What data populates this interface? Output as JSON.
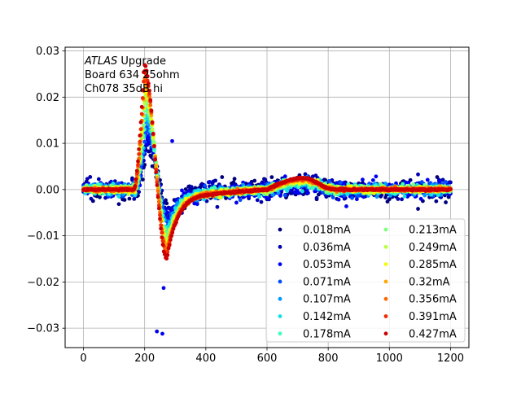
{
  "chart_data": {
    "type": "scatter",
    "annotation": {
      "prefix_italic": "ATLAS",
      "prefix_rest": " Upgrade",
      "line2": " Board 634 25ohm",
      "line3": " Ch078 35dB hi"
    },
    "xlim": [
      -60,
      1260
    ],
    "ylim": [
      -0.0342,
      0.0308
    ],
    "xticks": [
      0,
      200,
      400,
      600,
      800,
      1000,
      1200
    ],
    "xtick_labels": [
      "0",
      "200",
      "400",
      "600",
      "800",
      "1000",
      "1200"
    ],
    "yticks": [
      -0.03,
      -0.02,
      -0.01,
      0.0,
      0.01,
      0.02,
      0.03
    ],
    "ytick_labels": [
      "−0.03",
      "−0.02",
      "−0.01",
      "0.00",
      "0.01",
      "0.02",
      "0.03"
    ],
    "grid": true,
    "legend": {
      "location": "lower right",
      "columns": 2
    },
    "x_range": [
      0,
      1200
    ],
    "x_step": 3.125,
    "pulse_shape": {
      "baseline": 0.0,
      "rise_start": 165,
      "peak": {
        "x": 198,
        "y": 0.027
      },
      "trough": {
        "x": 272,
        "y": -0.015
      },
      "recovery_end": {
        "x": 420,
        "y": -0.001
      },
      "bump": {
        "x": 720,
        "y": 0.0025
      },
      "bump_end": {
        "x": 820,
        "y": 0.0
      }
    },
    "outliers": [
      {
        "x": 240,
        "y": -0.0307
      },
      {
        "x": 258,
        "y": -0.0312
      },
      {
        "x": 290,
        "y": 0.0105
      },
      {
        "x": 262,
        "y": -0.0213
      }
    ],
    "series": [
      {
        "name": "0.018mA",
        "color": "#00007f",
        "noise": 0.0012
      },
      {
        "name": "0.036mA",
        "color": "#0000b2",
        "noise": 0.001
      },
      {
        "name": "0.053mA",
        "color": "#0000f1",
        "noise": 0.0009
      },
      {
        "name": "0.071mA",
        "color": "#004cff",
        "noise": 0.0007
      },
      {
        "name": "0.107mA",
        "color": "#0098ff",
        "noise": 0.0006
      },
      {
        "name": "0.142mA",
        "color": "#16e0e0",
        "noise": 0.0005
      },
      {
        "name": "0.178mA",
        "color": "#3cffba",
        "noise": 0.0004
      },
      {
        "name": "0.213mA",
        "color": "#7dff7a",
        "noise": 0.0004
      },
      {
        "name": "0.249mA",
        "color": "#baff3c",
        "noise": 0.0003
      },
      {
        "name": "0.285mA",
        "color": "#f1fc06",
        "noise": 0.0003
      },
      {
        "name": "0.32mA",
        "color": "#ffa700",
        "noise": 0.0002
      },
      {
        "name": "0.356mA",
        "color": "#ff6700",
        "noise": 0.0002
      },
      {
        "name": "0.391mA",
        "color": "#f12a00",
        "noise": 0.0001
      },
      {
        "name": "0.427mA",
        "color": "#cc0000",
        "noise": 0.0001
      }
    ]
  }
}
